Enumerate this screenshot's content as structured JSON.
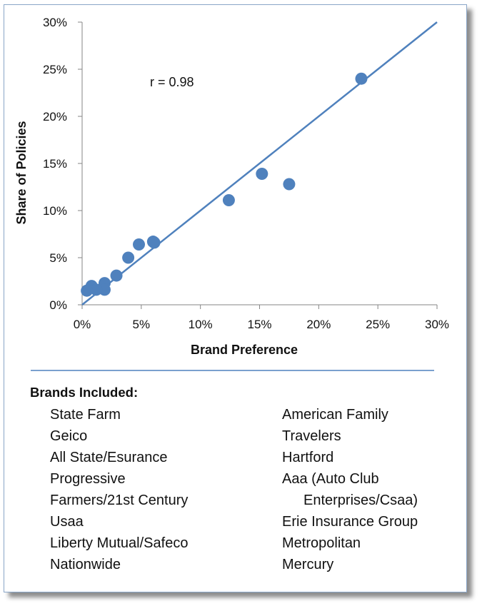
{
  "chart_data": {
    "type": "scatter",
    "xlabel": "Brand Preference",
    "ylabel": "Share of Policies",
    "xlim": [
      0,
      30
    ],
    "ylim": [
      0,
      30
    ],
    "x_ticks": [
      "0%",
      "5%",
      "10%",
      "15%",
      "20%",
      "25%",
      "30%"
    ],
    "y_ticks": [
      "0%",
      "5%",
      "10%",
      "15%",
      "20%",
      "25%",
      "30%"
    ],
    "annotation": "r = 0.98",
    "grid": false,
    "fit_line": {
      "x": [
        0,
        30
      ],
      "y": [
        0,
        30
      ]
    },
    "series": [
      {
        "points": [
          {
            "x": 23.6,
            "y": 24.0
          },
          {
            "x": 17.5,
            "y": 12.8
          },
          {
            "x": 15.2,
            "y": 13.9
          },
          {
            "x": 12.4,
            "y": 11.1
          },
          {
            "x": 6.1,
            "y": 6.6
          },
          {
            "x": 6.0,
            "y": 6.7
          },
          {
            "x": 4.8,
            "y": 6.4
          },
          {
            "x": 3.9,
            "y": 5.0
          },
          {
            "x": 2.9,
            "y": 3.1
          },
          {
            "x": 1.9,
            "y": 2.3
          },
          {
            "x": 1.9,
            "y": 1.6
          },
          {
            "x": 0.8,
            "y": 2.0
          },
          {
            "x": 1.2,
            "y": 1.6
          },
          {
            "x": 0.4,
            "y": 1.5
          }
        ]
      }
    ]
  },
  "colors": {
    "marker": "#4f81bd",
    "line": "#4f81bd",
    "divider": "#4f81bd",
    "frame_border": "#8aa6c8"
  },
  "brands": {
    "title": "Brands Included:",
    "col1": [
      "State Farm",
      "Geico",
      "All State/Esurance",
      "Progressive",
      "Farmers/21st Century",
      "Usaa",
      "Liberty Mutual/Safeco",
      "Nationwide"
    ],
    "col2": [
      "American Family",
      "Travelers",
      "Hartford",
      "Aaa (Auto Club",
      "Enterprises/Csaa)",
      "Erie Insurance Group",
      "Metropolitan",
      "Mercury"
    ]
  }
}
